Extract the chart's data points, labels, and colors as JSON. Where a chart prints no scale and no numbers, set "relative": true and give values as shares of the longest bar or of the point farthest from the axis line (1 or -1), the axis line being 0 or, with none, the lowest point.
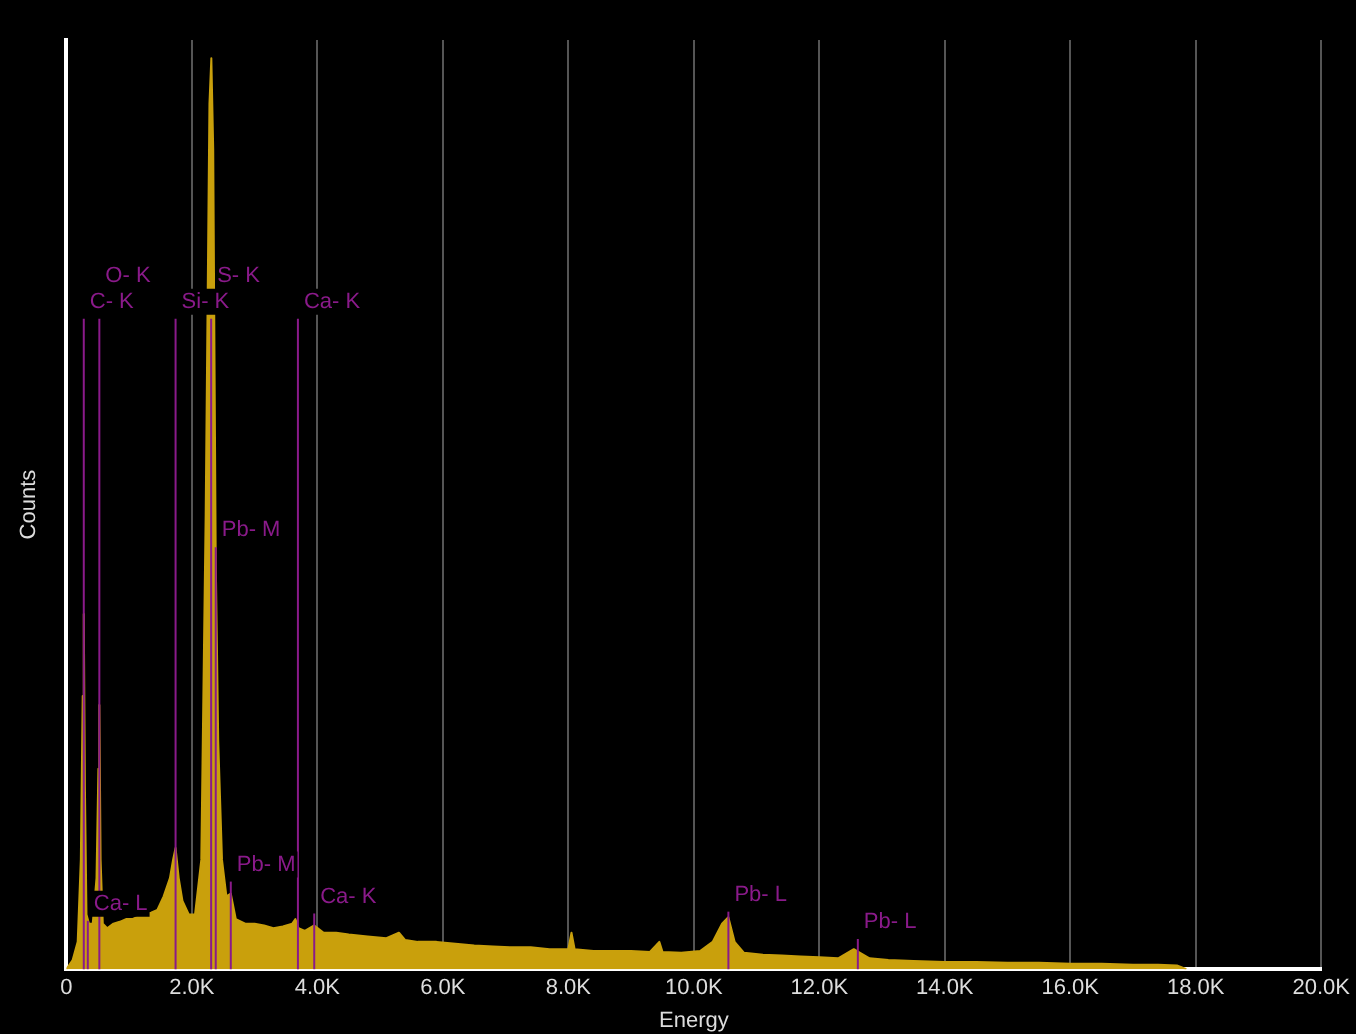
{
  "chart_data": {
    "type": "area",
    "xlabel": "Energy",
    "ylabel": "Counts",
    "relative": true,
    "x": [
      0,
      100,
      180,
      230,
      260,
      277,
      295,
      320,
      360,
      420,
      480,
      510,
      525,
      545,
      580,
      650,
      750,
      850,
      950,
      1050,
      1150,
      1250,
      1350,
      1450,
      1550,
      1650,
      1700,
      1740,
      1790,
      1850,
      1950,
      2050,
      2150,
      2220,
      2280,
      2310,
      2340,
      2380,
      2420,
      2480,
      2550,
      2620,
      2700,
      2850,
      3000,
      3150,
      3300,
      3450,
      3600,
      3650,
      3700,
      3800,
      3950,
      4100,
      4300,
      4500,
      4800,
      5100,
      5300,
      5400,
      5600,
      5900,
      6200,
      6500,
      6800,
      7100,
      7400,
      7700,
      8000,
      8050,
      8100,
      8400,
      8700,
      9000,
      9300,
      9450,
      9500,
      9800,
      10100,
      10300,
      10450,
      10550,
      10650,
      10800,
      11100,
      11400,
      11700,
      12000,
      12300,
      12550,
      12650,
      12800,
      13100,
      13500,
      14000,
      14500,
      15000,
      15500,
      16000,
      16500,
      17000,
      17400,
      17700,
      17850
    ],
    "series": [
      {
        "color": "#c9a00c",
        "values": [
          0,
          0.01,
          0.03,
          0.12,
          0.3,
          0.39,
          0.2,
          0.06,
          0.05,
          0.05,
          0.1,
          0.22,
          0.29,
          0.12,
          0.05,
          0.045,
          0.05,
          0.052,
          0.055,
          0.055,
          0.058,
          0.06,
          0.062,
          0.065,
          0.08,
          0.1,
          0.12,
          0.133,
          0.1,
          0.075,
          0.06,
          0.06,
          0.12,
          0.5,
          0.95,
          1.0,
          0.9,
          0.45,
          0.25,
          0.12,
          0.08,
          0.083,
          0.055,
          0.05,
          0.05,
          0.048,
          0.045,
          0.047,
          0.05,
          0.055,
          0.045,
          0.042,
          0.048,
          0.04,
          0.04,
          0.038,
          0.036,
          0.034,
          0.04,
          0.032,
          0.03,
          0.03,
          0.028,
          0.026,
          0.025,
          0.024,
          0.024,
          0.022,
          0.022,
          0.04,
          0.022,
          0.02,
          0.02,
          0.02,
          0.019,
          0.03,
          0.019,
          0.018,
          0.02,
          0.03,
          0.05,
          0.057,
          0.03,
          0.018,
          0.016,
          0.015,
          0.014,
          0.013,
          0.012,
          0.022,
          0.018,
          0.012,
          0.01,
          0.009,
          0.008,
          0.008,
          0.007,
          0.007,
          0.006,
          0.006,
          0.005,
          0.005,
          0.004,
          0
        ]
      }
    ],
    "xlim": [
      0,
      20000
    ],
    "xticks": [
      0,
      {
        "value": 2000,
        "label": "2.0K"
      },
      {
        "value": 4000,
        "label": "4.0K"
      },
      {
        "value": 6000,
        "label": "6.0K"
      },
      {
        "value": 8000,
        "label": "8.0K"
      },
      {
        "value": 10000,
        "label": "10.0K"
      },
      {
        "value": 12000,
        "label": "12.0K"
      },
      {
        "value": 14000,
        "label": "14.0K"
      },
      {
        "value": 16000,
        "label": "16.0K"
      },
      {
        "value": 18000,
        "label": "18.0K"
      },
      {
        "value": 20000,
        "label": "20.0K"
      }
    ],
    "grid": "x",
    "legend": false,
    "ref_lines": [
      {
        "axis": "x",
        "value": 277,
        "label": "C- K"
      },
      {
        "axis": "x",
        "value": 525,
        "label": "O- K"
      },
      {
        "axis": "x",
        "value": 1740,
        "label": "Si- K"
      },
      {
        "axis": "x",
        "value": 2307,
        "label": "S- K"
      },
      {
        "axis": "x",
        "value": 3690,
        "label": "Ca- K"
      }
    ],
    "annotations": [
      {
        "text": "Pb- M",
        "x": 2380,
        "y": 0.45
      },
      {
        "text": "Ca- L",
        "x": 341,
        "y": 0.04
      },
      {
        "text": "Pb- M",
        "x": 2620,
        "y": 0.083
      },
      {
        "text": "Ca- K",
        "x": 3950,
        "y": 0.048
      },
      {
        "text": "Pb- L",
        "x": 10551,
        "y": 0.05
      },
      {
        "text": "Pb- L",
        "x": 12614,
        "y": 0.02
      }
    ]
  }
}
